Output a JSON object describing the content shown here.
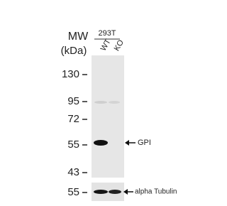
{
  "header": {
    "mw": "MW",
    "unit": "(kDa)",
    "cell_line": "293T",
    "lanes": [
      "WT",
      "KO"
    ]
  },
  "markers": [
    "130",
    "95",
    "72",
    "55",
    "43",
    "55"
  ],
  "bands": {
    "target": "GPI",
    "control": "alpha Tubulin"
  }
}
